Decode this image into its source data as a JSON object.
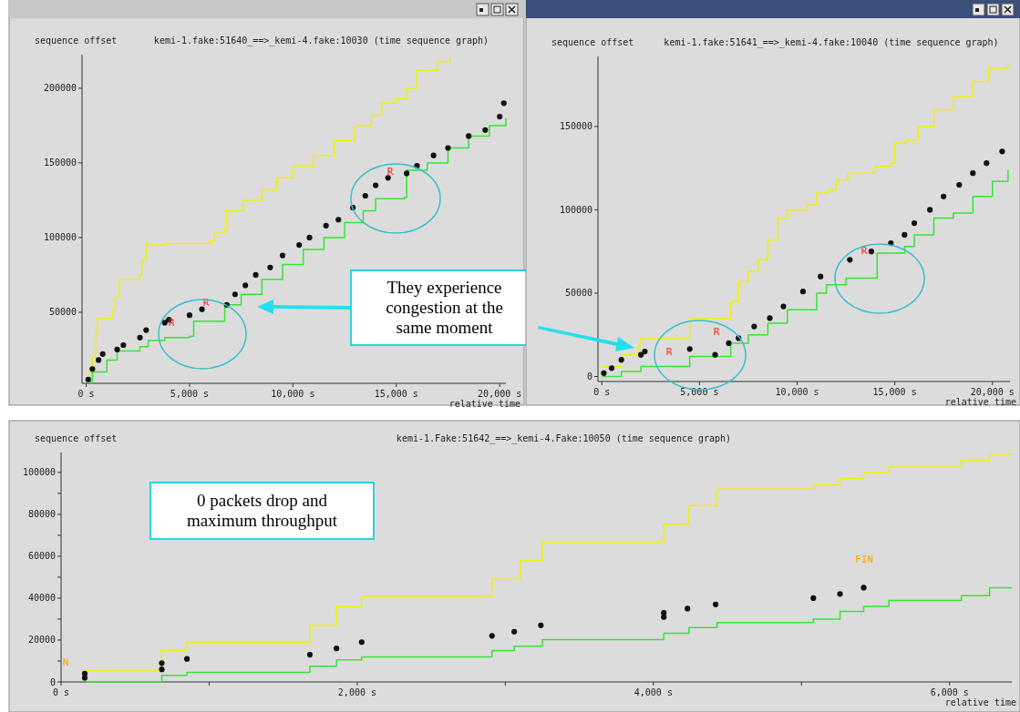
{
  "chart_data": [
    {
      "type": "scatter",
      "title": "kemi-1.fake:51640_==>_kemi-4.fake:10030 (time sequence graph)",
      "xlabel": "relative time",
      "ylabel": "sequence offset",
      "xlim": [
        -200,
        20300
      ],
      "ylim": [
        2400,
        222500
      ],
      "xticks": [
        {
          "value": 0,
          "label": "0 s"
        },
        {
          "value": 5000,
          "label": "5,000 s"
        },
        {
          "value": 10000,
          "label": "10,000 s"
        },
        {
          "value": 15000,
          "label": "15,000 s"
        },
        {
          "value": 20000,
          "label": "20,000 s"
        }
      ],
      "yticks": [
        50000,
        100000,
        150000,
        200000
      ],
      "annotations": [
        "They experience congestion at the same moment",
        "R",
        "R",
        "R"
      ],
      "series": [
        {
          "type": "step",
          "color": "#f0f000",
          "x": [
            50,
            300,
            450,
            550,
            1300,
            1400,
            1600,
            2600,
            2700,
            2900,
            3800,
            6000,
            6200,
            6700,
            6800,
            7600,
            8500,
            9200,
            10000,
            11000,
            12000,
            13000,
            13800,
            14300,
            15000,
            15500,
            16000,
            17000,
            17600
          ],
          "values": [
            10000,
            20000,
            35000,
            46000,
            52000,
            60000,
            72000,
            75000,
            85000,
            95000,
            96000,
            98000,
            103000,
            105000,
            118000,
            125000,
            132000,
            140000,
            148000,
            155000,
            165000,
            175000,
            182000,
            190000,
            193000,
            200000,
            212000,
            218000,
            221000
          ]
        },
        {
          "type": "step",
          "color": "#33e633",
          "x": [
            100,
            300,
            1000,
            1500,
            2600,
            3000,
            3800,
            5000,
            5200,
            6600,
            6700,
            7500,
            8500,
            9500,
            10500,
            11500,
            12500,
            13400,
            14000,
            15400,
            15500,
            16500,
            17500,
            18500,
            19500,
            20300
          ],
          "values": [
            3000,
            10000,
            18000,
            24000,
            27000,
            31000,
            33000,
            34000,
            44000,
            44000,
            55000,
            62000,
            72000,
            82000,
            92000,
            100000,
            110000,
            118000,
            126000,
            127000,
            145000,
            150000,
            160000,
            168000,
            175000,
            180000
          ]
        },
        {
          "type": "scatter",
          "marker": "circle",
          "color": "#111111",
          "x": [
            100,
            300,
            600,
            800,
            1500,
            1800,
            2600,
            2900,
            3800,
            4000,
            5000,
            5600,
            6800,
            7200,
            7700,
            8200,
            8900,
            9500,
            10300,
            10800,
            11600,
            12200,
            12900,
            13500,
            14000,
            14600,
            15500,
            16000,
            16800,
            17500,
            18500,
            19300,
            20000,
            20200
          ],
          "values": [
            5000,
            12000,
            18000,
            22000,
            25000,
            28000,
            33000,
            38000,
            43000,
            45000,
            48000,
            52000,
            55000,
            62000,
            68000,
            75000,
            80000,
            88000,
            95000,
            100000,
            108000,
            112000,
            120000,
            128000,
            135000,
            140000,
            143000,
            148000,
            155000,
            160000,
            168000,
            172000,
            181000,
            190000
          ]
        }
      ]
    },
    {
      "type": "scatter",
      "title": "kemi-1.fake:51641_==>_kemi-4.fake:10040 (time sequence graph)",
      "xlabel": "relative time",
      "ylabel": "sequence offset",
      "xlim": [
        -200,
        20900
      ],
      "ylim": [
        -3000,
        192000
      ],
      "xticks": [
        {
          "value": 0,
          "label": "0 s"
        },
        {
          "value": 5000,
          "label": "5,000 s"
        },
        {
          "value": 10000,
          "label": "10,000 s"
        },
        {
          "value": 15000,
          "label": "15,000 s"
        },
        {
          "value": 20000,
          "label": "20,000 s"
        }
      ],
      "yticks": [
        0,
        50000,
        100000,
        150000
      ],
      "annotations": [
        "R",
        "R",
        "R"
      ],
      "series": [
        {
          "type": "step",
          "color": "#f0f000",
          "x": [
            0,
            1000,
            1900,
            2000,
            4500,
            6600,
            7000,
            7500,
            8000,
            8500,
            9000,
            9500,
            10500,
            11000,
            11600,
            12000,
            12600,
            14000,
            14800,
            15000,
            15600,
            16200,
            17000,
            18000,
            19000,
            19800,
            20800
          ],
          "values": [
            6000,
            13000,
            19000,
            23000,
            35000,
            45000,
            57000,
            63000,
            70000,
            82000,
            95000,
            100000,
            103000,
            110000,
            112000,
            118000,
            122000,
            126000,
            128000,
            140000,
            142000,
            150000,
            160000,
            168000,
            177000,
            185000,
            188000
          ]
        },
        {
          "type": "step",
          "color": "#33e633",
          "x": [
            0,
            1000,
            2000,
            4500,
            6600,
            7500,
            8500,
            9500,
            11000,
            11500,
            12500,
            14100,
            15500,
            16000,
            17000,
            18000,
            19000,
            20000,
            20800
          ],
          "values": [
            0,
            3000,
            6000,
            12000,
            20000,
            25000,
            32000,
            40000,
            50000,
            55000,
            59000,
            74000,
            78000,
            85000,
            95000,
            98000,
            108000,
            117000,
            124000
          ]
        },
        {
          "type": "scatter",
          "marker": "circle",
          "color": "#111111",
          "x": [
            100,
            500,
            1000,
            2000,
            2200,
            4500,
            5800,
            6500,
            7000,
            7800,
            8600,
            9300,
            10300,
            11200,
            12700,
            13800,
            14800,
            15500,
            16000,
            16800,
            17500,
            18300,
            19000,
            19700,
            20500
          ],
          "values": [
            2000,
            5000,
            10000,
            13000,
            15000,
            16500,
            13000,
            20000,
            23000,
            30000,
            35000,
            42000,
            51000,
            60000,
            70000,
            75000,
            80000,
            85000,
            92000,
            100000,
            108000,
            115000,
            122000,
            128000,
            135000
          ]
        }
      ]
    },
    {
      "type": "scatter",
      "title": "kemi-1.Fake:51642_==>_kemi-4.Fake:10050 (time sequence graph)",
      "xlabel": "relative time",
      "ylabel": "sequence offset",
      "xlim": [
        0,
        6420
      ],
      "ylim": [
        0,
        109500
      ],
      "xticks": [
        {
          "value": 0,
          "label": "0 s"
        },
        {
          "value": 1000,
          "label": null
        },
        {
          "value": 2000,
          "label": "2,000 s"
        },
        {
          "value": 3000,
          "label": null
        },
        {
          "value": 4000,
          "label": "4,000 s"
        },
        {
          "value": 5000,
          "label": null
        },
        {
          "value": 6000,
          "label": "6,000 s"
        }
      ],
      "yticks": [
        0,
        {
          "value": 10000,
          "label": null
        },
        20000,
        {
          "value": 30000,
          "label": null
        },
        40000,
        {
          "value": 50000,
          "label": null
        },
        60000,
        {
          "value": 70000,
          "label": null
        },
        80000,
        {
          "value": 90000,
          "label": null
        },
        100000
      ],
      "annotations": [
        "0 packets drop and maximum throughput",
        "N",
        "FIN"
      ],
      "series": [
        {
          "type": "step",
          "color": "#f0f000",
          "x": [
            150,
            680,
            850,
            1680,
            1860,
            2030,
            2910,
            3100,
            3250,
            4070,
            4240,
            4430,
            5080,
            5260,
            5420,
            5590,
            6080,
            6270,
            6420
          ],
          "values": [
            5700,
            15000,
            19000,
            27000,
            36000,
            41000,
            49000,
            58000,
            66800,
            75300,
            84200,
            92000,
            94000,
            97100,
            99900,
            102500,
            105900,
            108700,
            108700
          ]
        },
        {
          "type": "step",
          "color": "#33e633",
          "x": [
            170,
            680,
            850,
            1680,
            1860,
            2030,
            2910,
            3060,
            3250,
            4070,
            4240,
            4430,
            5080,
            5260,
            5420,
            5590,
            6080,
            6270,
            6420
          ],
          "values": [
            0,
            3100,
            4600,
            7500,
            10500,
            12000,
            15000,
            17100,
            20200,
            23300,
            26000,
            28400,
            30000,
            33700,
            36100,
            38900,
            41200,
            45000,
            45000
          ]
        },
        {
          "type": "scatter",
          "marker": "circle",
          "color": "#111111",
          "x": [
            160,
            160,
            680,
            680,
            850,
            1680,
            1860,
            2030,
            2910,
            3060,
            3240,
            4070,
            4070,
            4230,
            4420,
            5080,
            5260,
            5420
          ],
          "values": [
            2000,
            4000,
            6000,
            9000,
            11000,
            13000,
            16000,
            19000,
            22000,
            24000,
            27000,
            31000,
            33000,
            35000,
            37000,
            40000,
            42000,
            45000
          ]
        }
      ]
    }
  ]
}
